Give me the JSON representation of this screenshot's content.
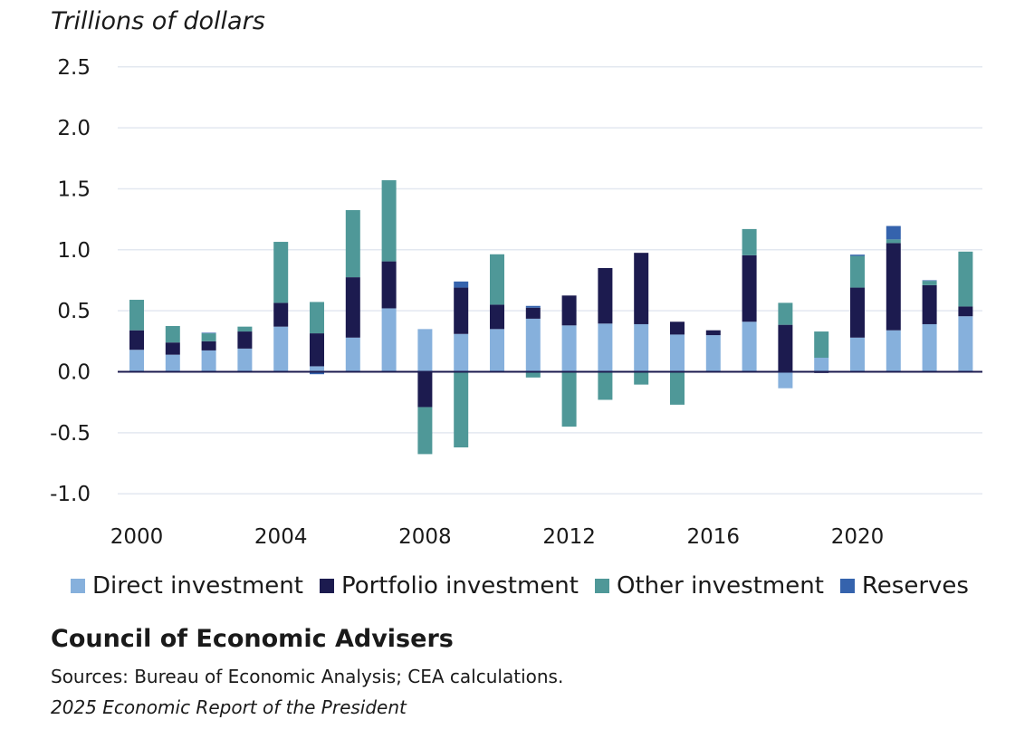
{
  "chart_data": {
    "type": "bar",
    "stacked": true,
    "ylabel": "Trillions of dollars",
    "ylim": [
      -1.0,
      2.5
    ],
    "yticks": [
      2.5,
      2.0,
      1.5,
      1.0,
      0.5,
      0.0,
      -0.5,
      -1.0
    ],
    "ytick_labels": [
      "2.5",
      "2.0",
      "1.5",
      "1.0",
      "0.5",
      "0.0",
      "-0.5",
      "-1.0"
    ],
    "xticks": [
      2000,
      2004,
      2008,
      2012,
      2016,
      2020
    ],
    "xtick_labels": [
      "2000",
      "2004",
      "2008",
      "2012",
      "2016",
      "2020"
    ],
    "grid": true,
    "legend_position": "bottom",
    "categories": [
      2000,
      2001,
      2002,
      2003,
      2004,
      2005,
      2006,
      2007,
      2008,
      2009,
      2010,
      2011,
      2012,
      2013,
      2014,
      2015,
      2016,
      2017,
      2018,
      2019,
      2020,
      2021,
      2022,
      2023
    ],
    "series": [
      {
        "name": "Direct investment",
        "color": "#86b0dc",
        "values": [
          0.18,
          0.14,
          0.175,
          0.19,
          0.37,
          0.045,
          0.28,
          0.52,
          0.35,
          0.31,
          0.35,
          0.435,
          0.38,
          0.395,
          0.39,
          0.305,
          0.3,
          0.41,
          -0.135,
          0.115,
          0.28,
          0.34,
          0.39,
          0.455
        ]
      },
      {
        "name": "Portfolio investment",
        "color": "#1c1b4f",
        "values": [
          0.16,
          0.1,
          0.075,
          0.14,
          0.195,
          0.27,
          0.495,
          0.385,
          -0.29,
          0.38,
          0.2,
          0.09,
          0.245,
          0.455,
          0.585,
          0.105,
          0.04,
          0.545,
          0.385,
          -0.01,
          0.41,
          0.715,
          0.32,
          0.08
        ]
      },
      {
        "name": "Other investment",
        "color": "#4f9898",
        "values": [
          0.25,
          0.135,
          0.065,
          0.04,
          0.5,
          0.257,
          0.55,
          0.665,
          -0.385,
          -0.62,
          0.413,
          -0.047,
          -0.45,
          -0.23,
          -0.105,
          -0.27,
          0.0,
          0.215,
          0.18,
          0.215,
          0.26,
          0.03,
          0.035,
          0.45
        ]
      },
      {
        "name": "Reserves",
        "color": "#3563ad",
        "values": [
          0.0,
          0.0,
          0.005,
          0.0,
          0.0,
          -0.02,
          0.0,
          0.0,
          0.0,
          0.05,
          0.0,
          0.015,
          0.0,
          0.0,
          0.0,
          0.0,
          0.0,
          0.0,
          0.0,
          0.0,
          0.01,
          0.11,
          0.005,
          0.0
        ]
      }
    ]
  },
  "footer": {
    "organization": "Council of Economic Advisers",
    "sources": "Sources: Bureau of Economic Analysis; CEA calculations.",
    "report": "2025 Economic Report of the President"
  }
}
